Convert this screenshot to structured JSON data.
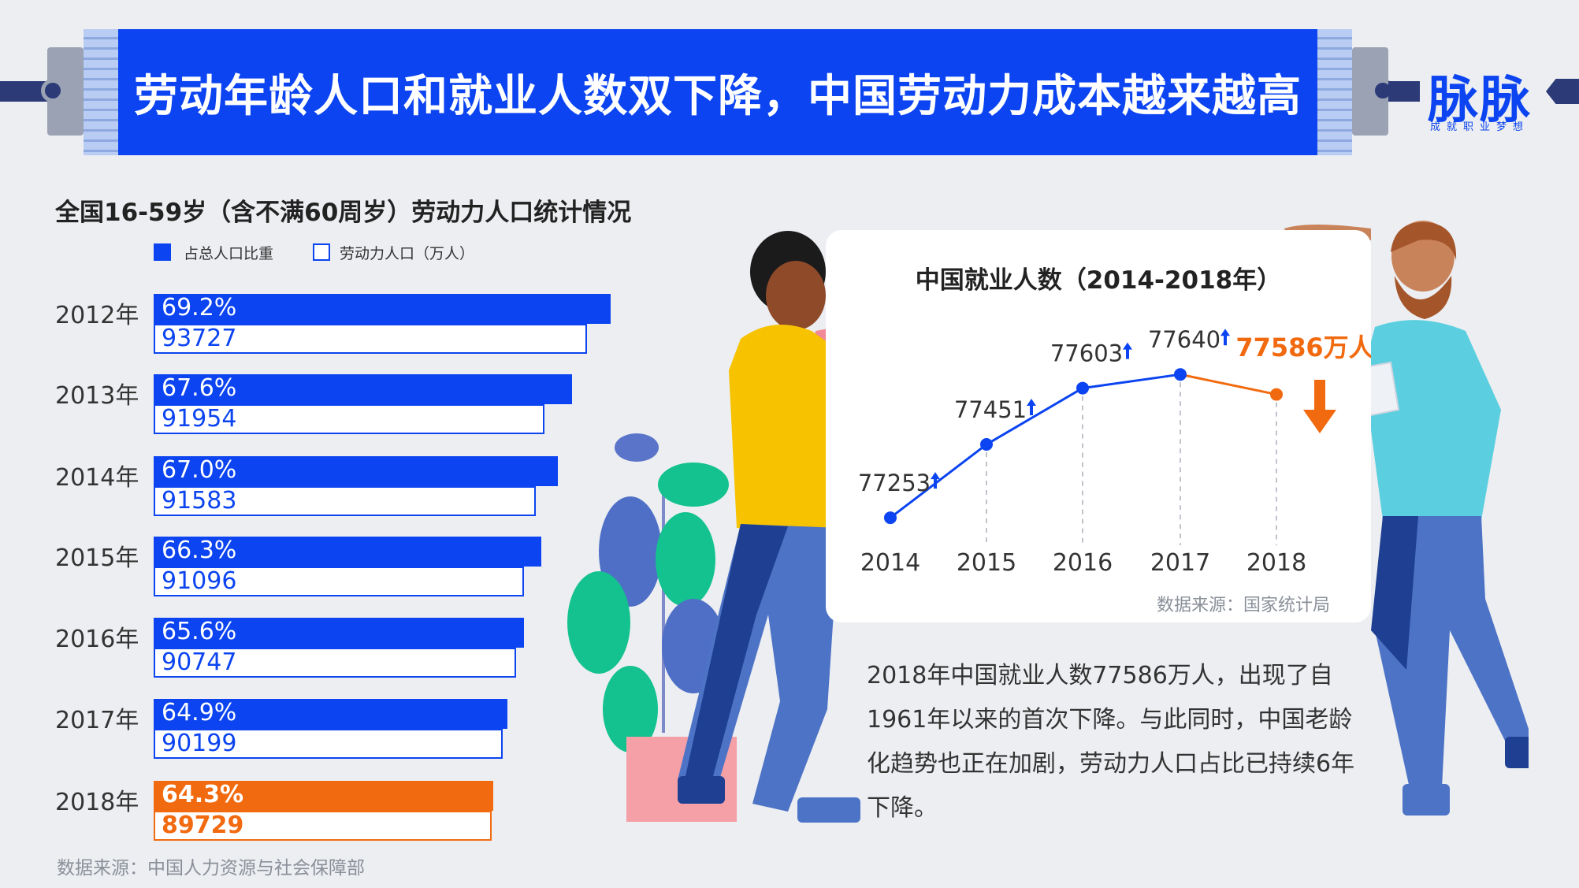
{
  "header": {
    "title": "劳动年龄人口和就业人数双下降，中国劳动力成本越来越高",
    "logo_text": "脉脉",
    "logo_tagline": "成就职业梦想",
    "brand_color": "#0b44f0"
  },
  "left_chart": {
    "title": "全国16-59岁（含不满60周岁）劳动力人口统计情况",
    "source": "数据来源：中国人力资源与社会保障部"
  },
  "right_chart": {
    "title": "中国就业人数（2014-2018年）",
    "source": "数据来源：国家统计局",
    "highlight_label": "77586万人"
  },
  "description": "2018年中国就业人数77586万人，出现了自1961年以来的首次下降。与此同时，中国老龄化趋势也正在加剧，劳动力人口占比已持续6年下降。",
  "chart_data": [
    {
      "type": "bar",
      "title": "全国16-59岁（含不满60周岁）劳动力人口统计情况",
      "categories": [
        "2012年",
        "2013年",
        "2014年",
        "2015年",
        "2016年",
        "2017年",
        "2018年"
      ],
      "series": [
        {
          "name": "占总人口比重",
          "values": [
            69.2,
            67.6,
            67.0,
            66.3,
            65.6,
            64.9,
            64.3
          ],
          "labels": [
            "69.2%",
            "67.6%",
            "67.0%",
            "66.3%",
            "65.6%",
            "64.9%",
            "64.3%"
          ],
          "color": "#0b44f0"
        },
        {
          "name": "劳动力人口（万人）",
          "values": [
            93727,
            91954,
            91583,
            91096,
            90747,
            90199,
            89729
          ],
          "labels": [
            "93727",
            "91954",
            "91583",
            "91096",
            "90747",
            "90199",
            "89729"
          ],
          "color": "#0b44f0"
        }
      ],
      "highlight_category": "2018年",
      "highlight_color": "#f26a0f",
      "orientation": "horizontal",
      "legend": "top-left"
    },
    {
      "type": "line",
      "title": "中国就业人数（2014-2018年）",
      "x": [
        "2014",
        "2015",
        "2016",
        "2017",
        "2018"
      ],
      "series": [
        {
          "values": [
            77253,
            77451,
            77603,
            77640,
            77586
          ],
          "labels": [
            "77253",
            "77451",
            "77603",
            "77640",
            "77586万人"
          ]
        }
      ],
      "colors": {
        "rise": "#0b44f0",
        "fall": "#f26a0f"
      },
      "grid": false
    }
  ]
}
